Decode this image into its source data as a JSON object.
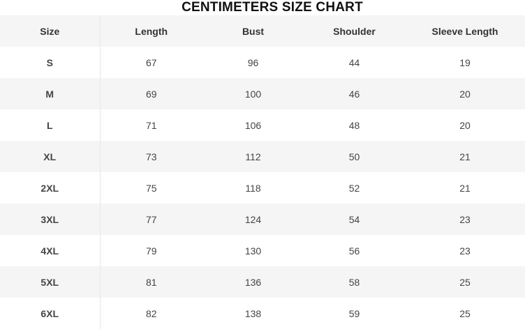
{
  "title": "CENTIMETERS SIZE CHART",
  "table": {
    "headers": [
      "Size",
      "Length",
      "Bust",
      "Shoulder",
      "Sleeve Length"
    ],
    "rows": [
      [
        "S",
        "67",
        "96",
        "44",
        "19"
      ],
      [
        "M",
        "69",
        "100",
        "46",
        "20"
      ],
      [
        "L",
        "71",
        "106",
        "48",
        "20"
      ],
      [
        "XL",
        "73",
        "112",
        "50",
        "21"
      ],
      [
        "2XL",
        "75",
        "118",
        "52",
        "21"
      ],
      [
        "3XL",
        "77",
        "124",
        "54",
        "23"
      ],
      [
        "4XL",
        "79",
        "130",
        "56",
        "23"
      ],
      [
        "5XL",
        "81",
        "136",
        "58",
        "25"
      ],
      [
        "6XL",
        "82",
        "138",
        "59",
        "25"
      ]
    ]
  }
}
